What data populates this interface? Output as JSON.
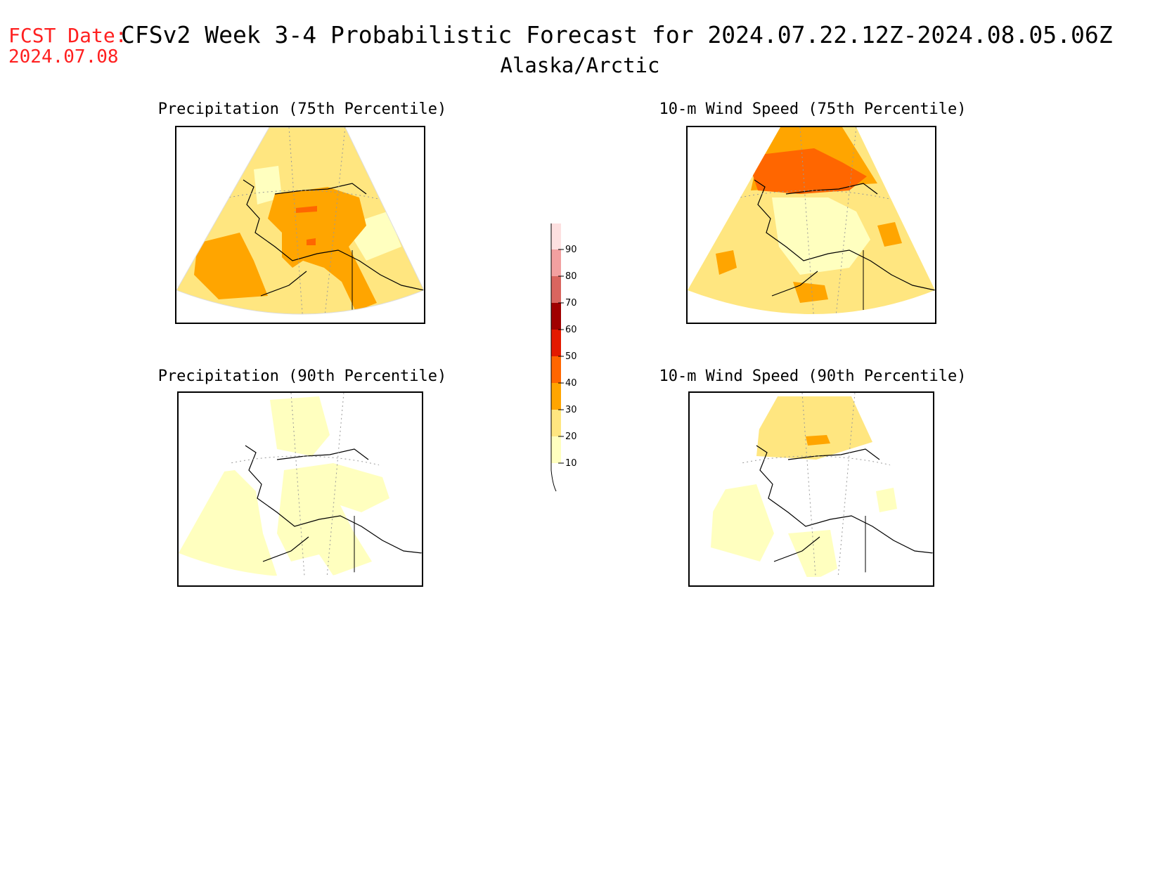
{
  "header": {
    "fcst_label": "FCST Date:",
    "fcst_date": "2024.07.08",
    "title": "CFSv2 Week 3-4 Probabilistic Forecast for 2024.07.22.12Z-2024.08.05.06Z",
    "region": "Alaska/Arctic"
  },
  "panels": [
    {
      "id": "precip-75",
      "title": "Precipitation (75th Percentile)"
    },
    {
      "id": "wind-75",
      "title": "10-m Wind Speed (75th Percentile)"
    },
    {
      "id": "precip-90",
      "title": "Precipitation (90th Percentile)"
    },
    {
      "id": "wind-90",
      "title": "10-m Wind Speed (90th Percentile)"
    }
  ],
  "colorbar": {
    "levels": [
      "10",
      "20",
      "30",
      "40",
      "50",
      "60",
      "70",
      "80",
      "90"
    ],
    "colors": [
      "#ffffbf",
      "#ffe680",
      "#ffa500",
      "#ff6600",
      "#e31a00",
      "#a00000",
      "#d9655f",
      "#f2a0a0",
      "#fde0e0"
    ]
  }
}
